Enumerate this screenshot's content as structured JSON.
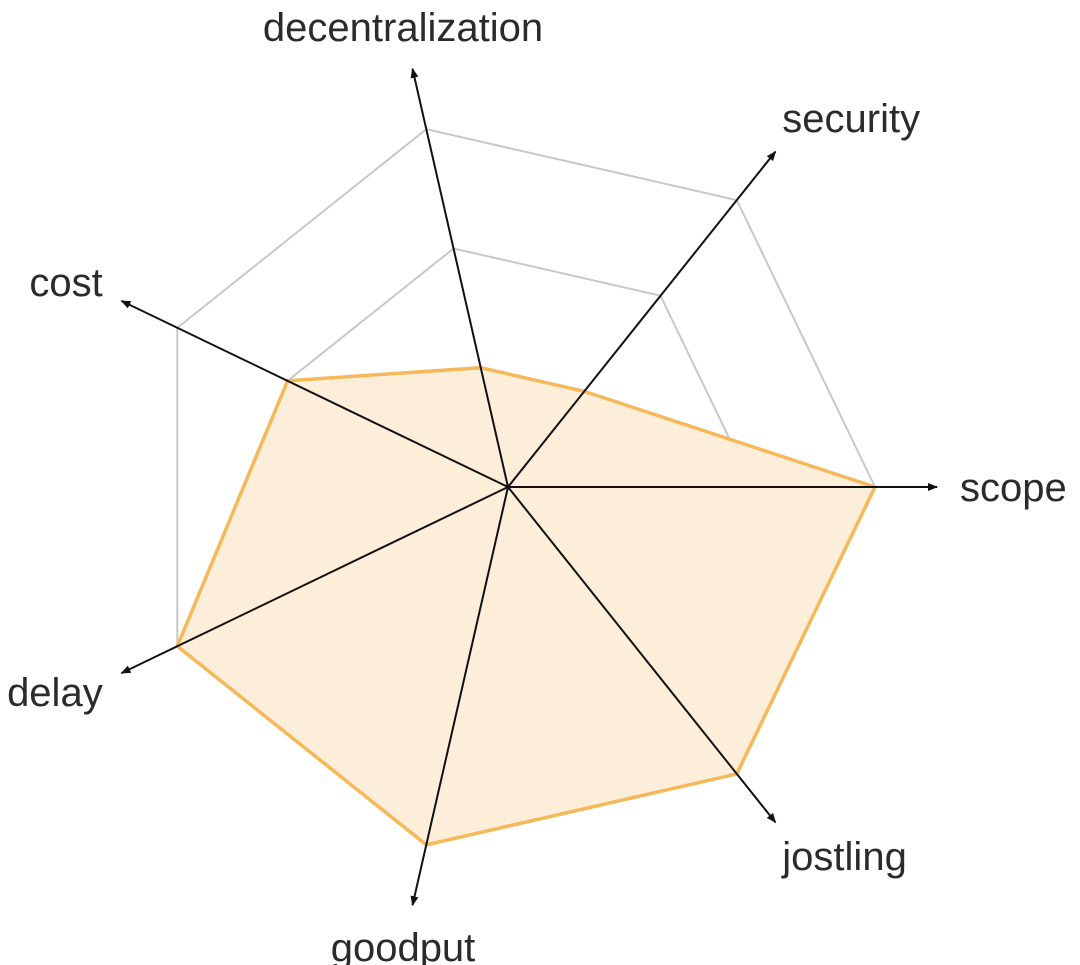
{
  "chart_data": {
    "type": "radar",
    "title": "",
    "axes": [
      "scope",
      "security",
      "decentralization",
      "cost",
      "delay",
      "goodput",
      "jostling"
    ],
    "grid_levels": 3,
    "r_max": 3,
    "series": [
      {
        "values": [
          3,
          1,
          1,
          2,
          3,
          3,
          3
        ]
      }
    ],
    "colors": {
      "fill": "#fdeeda",
      "stroke": "#f5b95a",
      "grid": "#c8c8c8",
      "axis": "#111111",
      "label": "#2b2b2b"
    }
  }
}
